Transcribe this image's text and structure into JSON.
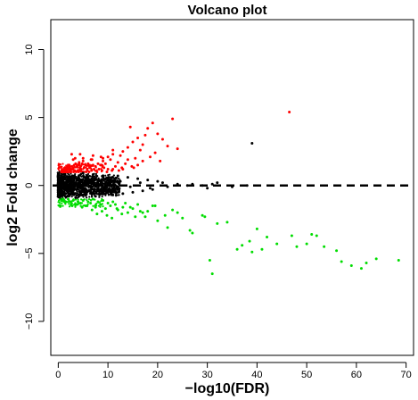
{
  "chart_data": {
    "type": "scatter",
    "title": "Volcano plot",
    "xlabel": "−log10(FDR)",
    "ylabel": "log2 Fold change",
    "xlim": [
      -1.5,
      71.5
    ],
    "ylim": [
      -12.5,
      12.2
    ],
    "x_ticks": [
      0,
      10,
      20,
      30,
      40,
      50,
      60,
      70
    ],
    "y_ticks": [
      -10,
      -5,
      0,
      5,
      10
    ],
    "grid": false,
    "legend": "none",
    "reference_line": {
      "axis": "y",
      "value": 0,
      "style": "dashed"
    },
    "series": [
      {
        "color": "#ff0000",
        "x": [
          46.5,
          23,
          19,
          17.5,
          14.5,
          18,
          20,
          16,
          15,
          21,
          17,
          14,
          16.5,
          22,
          13,
          12.5,
          15.5,
          19.5,
          24,
          18.5,
          11,
          14,
          17,
          12,
          10.5,
          13.5,
          16,
          20.5,
          10,
          11.5,
          9.5,
          12.8,
          14.8,
          9,
          8.5,
          11,
          13,
          15.2,
          8,
          7.5,
          10,
          12.2,
          7,
          9.2,
          6.8,
          8.2,
          10.8,
          6.5,
          6,
          7.2,
          9.8,
          5.5,
          5,
          6.3,
          8.8,
          4.8,
          4.5,
          5.8,
          7.8,
          4.2,
          4,
          5.2,
          6.7,
          3.8,
          3.5,
          4.6,
          6.2,
          3.2,
          3,
          3.9,
          5.6,
          2.8,
          2.5,
          3.3,
          4.9,
          2.3,
          2.2,
          2.8,
          4.1,
          2,
          1.8,
          2.4,
          3.6,
          1.6,
          1.5,
          2,
          3.1,
          1.4,
          1.3,
          1.7,
          2.6,
          1.2,
          1.1,
          1.4,
          2.2,
          1,
          0.9,
          1.2,
          1.9,
          0.8,
          0.8,
          1,
          1.6,
          0.7,
          0.6,
          0.8,
          1.4,
          3,
          5,
          7,
          9,
          11,
          4.4,
          6.6,
          8.6,
          2.7,
          3.4
        ],
        "y": [
          5.4,
          4.9,
          4.6,
          3.7,
          4.3,
          4.2,
          3.8,
          3.5,
          3.2,
          3.4,
          3.0,
          2.8,
          2.6,
          2.9,
          2.5,
          2.2,
          2.0,
          2.4,
          2.7,
          2.1,
          2.3,
          1.9,
          1.8,
          1.7,
          1.9,
          1.6,
          1.5,
          1.8,
          2.1,
          1.4,
          1.6,
          1.3,
          1.4,
          1.8,
          1.5,
          1.2,
          1.2,
          1.3,
          1.6,
          1.4,
          1.2,
          1.1,
          1.5,
          1.3,
          1.9,
          1.2,
          1.1,
          1.4,
          1.6,
          1.2,
          1.0,
          1.5,
          1.8,
          1.3,
          1.1,
          1.6,
          1.4,
          1.2,
          1.0,
          1.7,
          1.5,
          1.3,
          1.1,
          1.4,
          1.6,
          1.2,
          1.0,
          1.5,
          1.3,
          1.1,
          1.0,
          1.4,
          1.2,
          1.1,
          1.0,
          1.3,
          1.5,
          1.2,
          1.0,
          1.4,
          1.2,
          1.1,
          1.0,
          1.3,
          1.1,
          1.2,
          1.0,
          1.2,
          1.1,
          1.0,
          1.0,
          1.1,
          1.2,
          1.0,
          1.0,
          1.1,
          1.0,
          1.0,
          1.0,
          1.0,
          1.1,
          1.0,
          1.0,
          1.1,
          1.0,
          1.0,
          1.0,
          1.9,
          2.0,
          2.2,
          2.0,
          2.6,
          2.3,
          1.9,
          2.1,
          2.3,
          2.0
        ]
      },
      {
        "color": "#000000",
        "x": [
          39,
          31,
          29,
          35,
          38,
          32,
          30,
          27,
          26,
          24,
          22,
          21,
          20,
          19,
          18,
          17,
          16,
          15,
          14,
          13,
          12,
          11,
          10.5,
          10,
          9.5,
          9,
          8.5,
          8,
          7.5,
          7,
          6.5,
          6,
          5.5,
          5,
          4.5,
          4,
          3.5,
          3,
          2.5,
          2,
          1.5,
          1,
          0.7,
          0.5,
          18.5,
          16.5,
          14.5,
          12.5,
          11.5,
          10.2,
          9.2,
          8.2,
          7.2,
          6.2,
          5.2,
          4.2,
          3.2,
          2.2,
          1.2
        ],
        "y": [
          3.1,
          0.1,
          0,
          -0.1,
          0,
          0.2,
          -0.2,
          0.1,
          0,
          0.1,
          -0.1,
          0.2,
          0.3,
          -0.3,
          0.4,
          -0.4,
          0.5,
          -0.5,
          0.6,
          -0.6,
          0.7,
          -0.7,
          0.2,
          0.5,
          -0.3,
          0.7,
          -0.6,
          0.3,
          -0.8,
          0.8,
          -0.4,
          0.6,
          -0.7,
          0.9,
          -0.5,
          0.4,
          -0.9,
          0.7,
          -0.2,
          0.5,
          -0.6,
          0.3,
          -0.4,
          0.1,
          -0.2,
          0.2,
          -0.1,
          0.3,
          -0.5,
          0.6,
          -0.3,
          0.4,
          -0.6,
          0.2,
          -0.4,
          0.5,
          -0.2,
          0.3,
          -0.1
        ]
      },
      {
        "color": "#00dd00",
        "x": [
          68.5,
          64,
          61,
          62,
          59,
          57,
          56,
          53.5,
          51,
          52,
          50,
          48,
          47,
          44,
          42,
          41,
          40,
          39,
          38.5,
          37,
          36,
          34,
          32,
          31,
          30.5,
          29.5,
          29,
          27,
          26.5,
          25,
          24,
          23,
          22,
          21.5,
          20,
          19,
          18,
          17.5,
          16,
          15,
          14,
          13.5,
          13,
          12,
          11.5,
          11,
          10.5,
          10,
          9.5,
          9,
          8.5,
          8,
          7.5,
          7,
          6.5,
          6,
          5.5,
          5,
          4.5,
          4,
          3.5,
          3,
          2.5,
          2,
          1.5,
          1.2,
          1,
          0.8,
          15.5,
          17,
          12.8,
          14.5,
          16.5,
          19.5,
          10.8,
          8.8,
          6.8,
          4.8,
          2.8,
          7.8,
          9.8,
          11.8,
          5.8,
          3.8
        ],
        "y": [
          -5.5,
          -5.4,
          -6.1,
          -5.7,
          -5.9,
          -5.6,
          -4.8,
          -4.5,
          -3.6,
          -3.7,
          -4.3,
          -4.5,
          -3.7,
          -4.3,
          -3.8,
          -4.7,
          -3.2,
          -4.9,
          -4.1,
          -4.4,
          -4.7,
          -2.7,
          -2.8,
          -6.5,
          -5.5,
          -2.3,
          -2.2,
          -3.5,
          -3.3,
          -2.4,
          -2.0,
          -1.8,
          -3.1,
          -2.2,
          -2.6,
          -1.5,
          -1.9,
          -2.3,
          -1.4,
          -1.7,
          -2.0,
          -1.3,
          -1.6,
          -1.8,
          -1.4,
          -1.2,
          -1.5,
          -1.3,
          -1.7,
          -1.1,
          -1.4,
          -1.2,
          -1.6,
          -1.0,
          -1.3,
          -1.2,
          -1.5,
          -1.1,
          -1.3,
          -1.2,
          -1.4,
          -1.1,
          -1.2,
          -1.0,
          -1.2,
          -1.1,
          -1.0,
          -1.0,
          -2.3,
          -2.0,
          -2.1,
          -1.6,
          -1.9,
          -1.5,
          -2.4,
          -1.9,
          -1.8,
          -1.6,
          -1.5,
          -2.1,
          -2.2,
          -1.7,
          -1.5,
          -1.4
        ]
      }
    ]
  }
}
